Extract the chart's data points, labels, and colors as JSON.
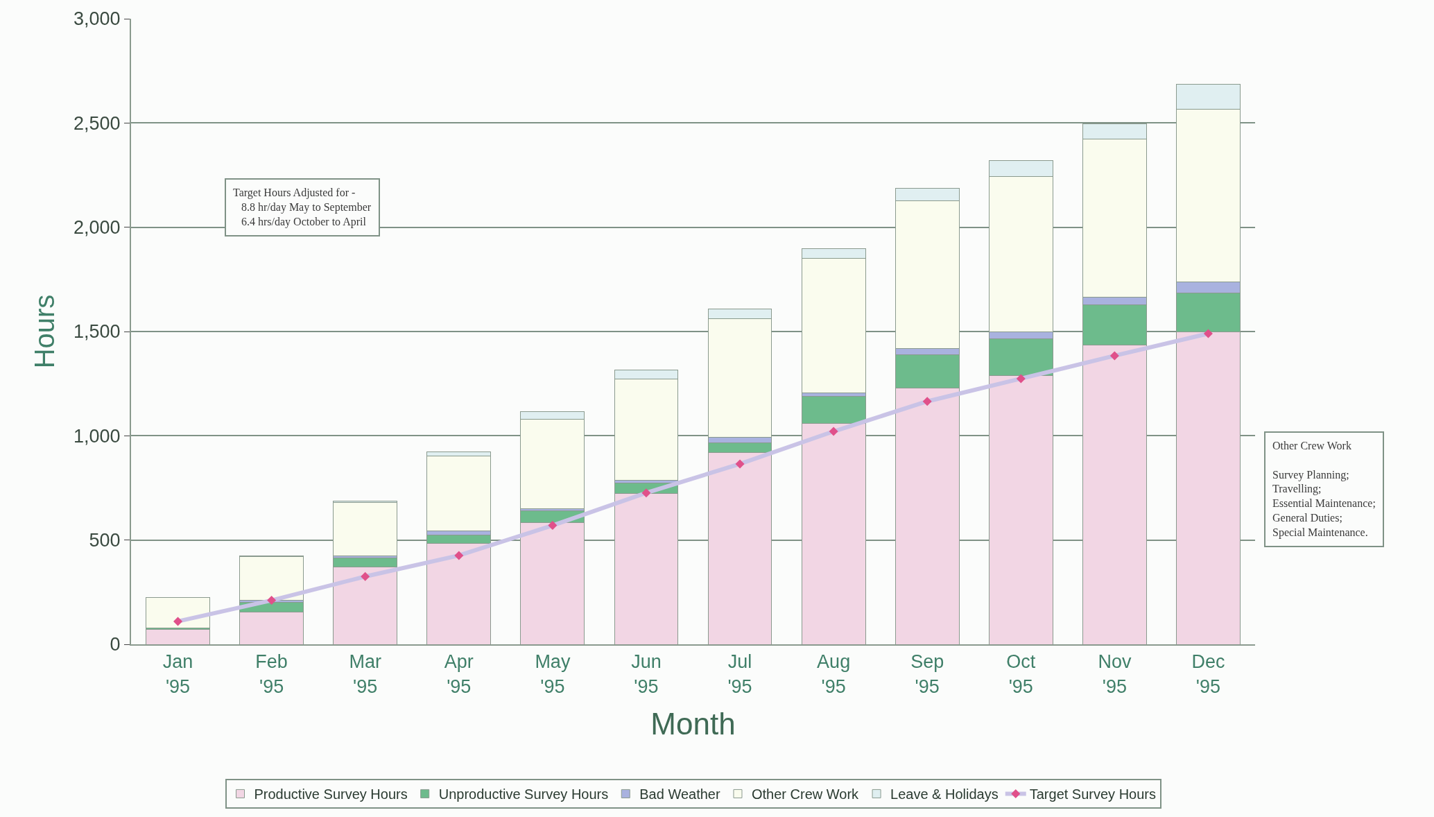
{
  "chart_data": {
    "type": "bar",
    "stacked": true,
    "xlabel": "Month",
    "ylabel": "Hours",
    "categories": [
      "Jan\n'95",
      "Feb\n'95",
      "Mar\n'95",
      "Apr\n'95",
      "May\n'95",
      "Jun\n'95",
      "Jul\n'95",
      "Aug\n'95",
      "Sep\n'95",
      "Oct\n'95",
      "Nov\n'95",
      "Dec\n'95"
    ],
    "series": [
      {
        "name": "Productive Survey Hours",
        "color": "#f2d6e4",
        "values": [
          70,
          155,
          370,
          485,
          585,
          725,
          920,
          1060,
          1230,
          1290,
          1435,
          1500
        ]
      },
      {
        "name": "Unproductive Survey Hours",
        "color": "#6dbb8c",
        "values": [
          8,
          45,
          45,
          40,
          55,
          48,
          46,
          130,
          160,
          175,
          193,
          185
        ]
      },
      {
        "name": "Bad Weather",
        "color": "#a9b2df",
        "values": [
          null,
          10,
          10,
          18,
          10,
          12,
          26,
          15,
          27,
          33,
          35,
          52
        ]
      },
      {
        "name": "Other Crew Work",
        "color": "#fafcee",
        "values": [
          145,
          210,
          256,
          360,
          430,
          487,
          571,
          645,
          710,
          745,
          761,
          830
        ]
      },
      {
        "name": "Leave & Holidays",
        "color": "#e0eff1",
        "values": [
          null,
          5,
          5,
          20,
          37,
          45,
          44,
          46,
          61,
          77,
          72,
          120
        ]
      },
      {
        "name": "Target Survey Hours",
        "type": "line",
        "color": "#c9c3e6",
        "marker": "diamond",
        "colors": [
          "#e0508a",
          "#e0508a",
          "#e0508a",
          "#e0508a",
          "#e0508a",
          "#e0508a",
          "#e0508a",
          "#e0508a",
          "#e0508a",
          "#e0508a",
          "#e0508a",
          "#e0508a"
        ],
        "values": [
          110,
          211,
          325,
          426,
          570,
          726,
          865,
          1021,
          1165,
          1274,
          1384,
          1490
        ]
      }
    ],
    "ylim": [
      0,
      3000
    ],
    "yticks": [
      {
        "value": 0,
        "label": "0"
      },
      {
        "value": 500,
        "label": "500"
      },
      {
        "value": 1000,
        "label": "1,000"
      },
      {
        "value": 1500,
        "label": "1,500"
      },
      {
        "value": 2000,
        "label": "2,000"
      },
      {
        "value": 2500,
        "label": "2,500"
      },
      {
        "value": 3000,
        "label": "3,000"
      }
    ],
    "grid": "y",
    "legend": "bottom",
    "annotations": [
      "Target Hours Adjusted for -\n   8.8 hr/day May to September\n   6.4 hrs/day October to April",
      "Other Crew Work\n\nSurvey Planning;\nTravelling;\nEssential Maintenance;\nGeneral Duties;\nSpecial Maintenance."
    ]
  }
}
